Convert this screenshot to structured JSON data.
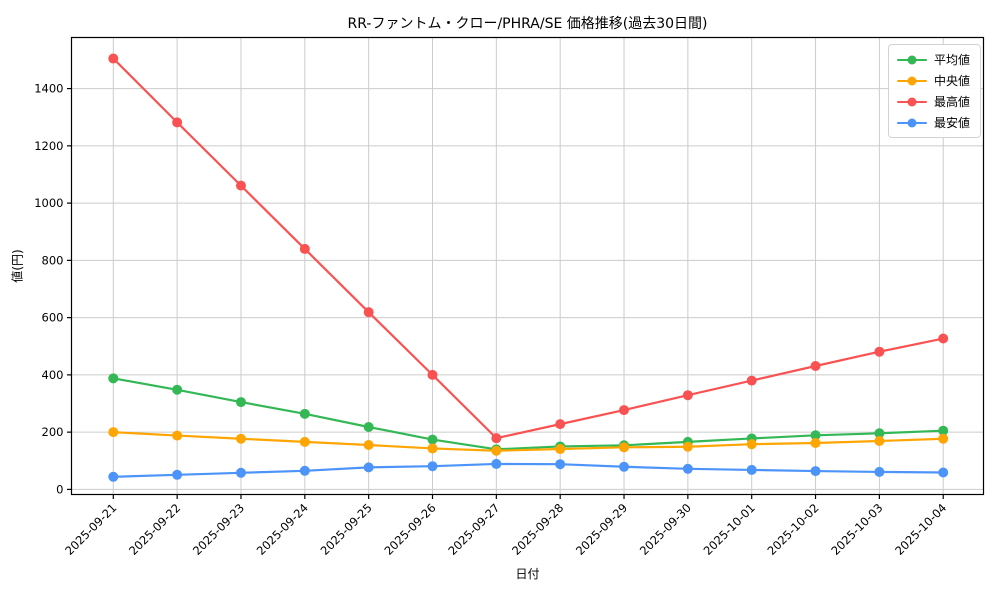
{
  "title": "RR-ファントム・クロー/PHRA/SE 価格推移(過去30日間)",
  "xlabel": "日付",
  "ylabel": "値(円)",
  "chart_data": {
    "type": "line",
    "x": [
      "2025-09-21",
      "2025-09-22",
      "2025-09-23",
      "2025-09-24",
      "2025-09-25",
      "2025-09-26",
      "2025-09-27",
      "2025-09-28",
      "2025-09-29",
      "2025-09-30",
      "2025-10-01",
      "2025-10-02",
      "2025-10-03",
      "2025-10-04"
    ],
    "series": [
      {
        "name": "平均値",
        "key": "average",
        "color": "#33b855",
        "values": [
          388,
          348,
          305,
          264,
          218,
          174,
          140,
          150,
          154,
          166,
          178,
          189,
          196,
          205
        ]
      },
      {
        "name": "中央値",
        "key": "median",
        "color": "#ffa502",
        "values": [
          200,
          188,
          177,
          166,
          155,
          143,
          135,
          141,
          147,
          149,
          158,
          162,
          169,
          177
        ]
      },
      {
        "name": "最高値",
        "key": "max",
        "color": "#fa5252",
        "values": [
          1505,
          1282,
          1061,
          840,
          619,
          400,
          179,
          228,
          277,
          329,
          380,
          431,
          481,
          527
        ]
      },
      {
        "name": "最安値",
        "key": "min",
        "color": "#4d94fa",
        "values": [
          44,
          51,
          58,
          65,
          77,
          81,
          89,
          88,
          79,
          72,
          68,
          64,
          61,
          59
        ]
      }
    ],
    "yticks": [
      0,
      200,
      400,
      600,
      800,
      1000,
      1200,
      1400
    ],
    "ylim": [
      -20,
      1580
    ],
    "grid": true,
    "legend_position": "upper right",
    "marker": "circle"
  },
  "colors": {
    "grid": "#cccccc",
    "axis": "#000000",
    "background": "#ffffff",
    "tick_label": "#000000"
  }
}
